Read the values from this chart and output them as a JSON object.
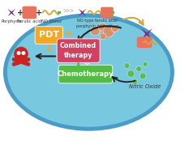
{
  "bg_color": "#ffffff",
  "cell_color": "#78c8e0",
  "cell_edge_color": "#4a9cc8",
  "pdt_color": "#f5a623",
  "pdt_text": "PDT",
  "combined_color": "#d44060",
  "combined_text": "Combined\ntherapy",
  "chemo_color": "#55bb44",
  "chemo_text": "Chemotherapy",
  "nitric_text": "Nitric Oxide",
  "porphyrin_color": "#7b2d8b",
  "ferulic_color": "#e8735a",
  "no_donor_wave_color": "#d4a840",
  "no_donor_small_color": "#55bb44",
  "skull_color": "#cc2222",
  "orange_bubble_colors": [
    "#e8735a",
    "#e07858",
    "#d06848"
  ],
  "teal_bubble_color": "#aaddee",
  "green_dot_color": "#55bb44",
  "arrow_black": "#222222",
  "orange_hollow_arrow": "#f5a623",
  "green_hollow_arrow": "#55bb44",
  "figsize": [
    2.33,
    1.89
  ],
  "dpi": 100
}
